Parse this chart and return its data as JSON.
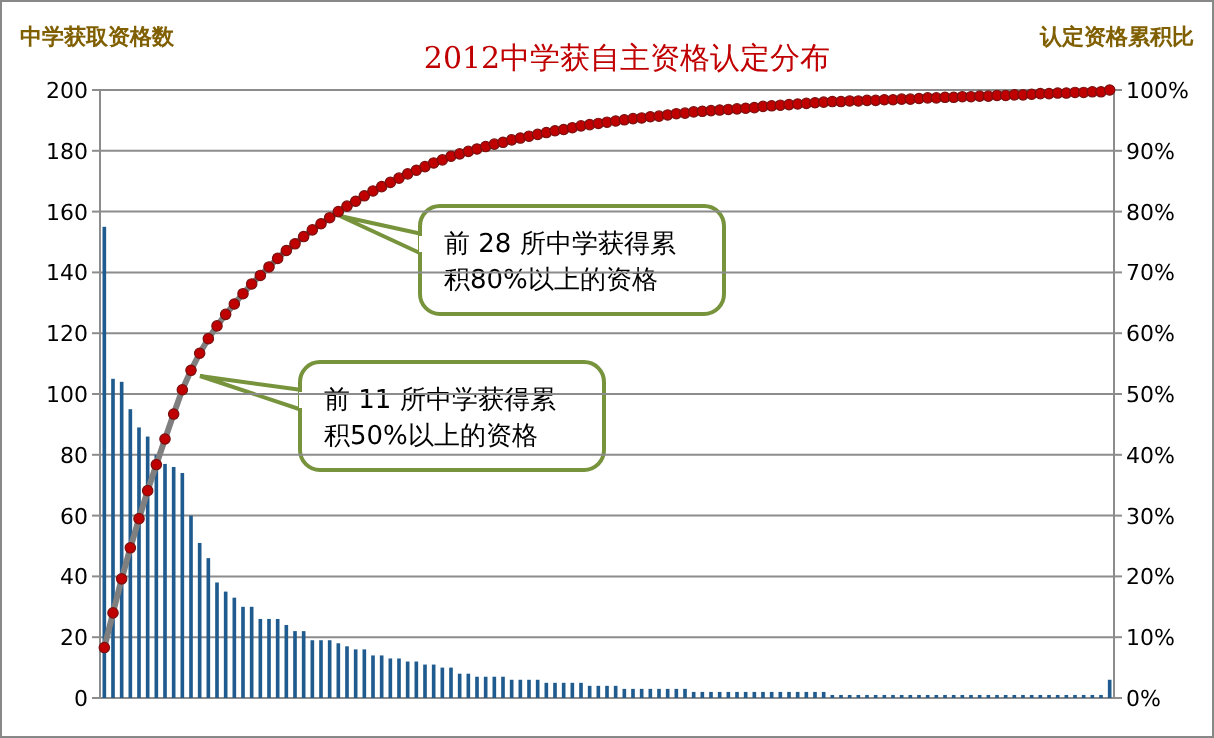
{
  "chart_data": {
    "type": "bar",
    "title": "2012中学获自主资格认定分布",
    "ylabel": "中学获取资格数",
    "y2label": "认定资格累积比",
    "categories": [
      null,
      null,
      null,
      null,
      null,
      null,
      null,
      null,
      null,
      null,
      null,
      null,
      null,
      null,
      null,
      null,
      null,
      null,
      null,
      null,
      null,
      null,
      null,
      null,
      null,
      null,
      null,
      null,
      null,
      null,
      null,
      null,
      null,
      null,
      null,
      null,
      null,
      null,
      null,
      null,
      null,
      null,
      null,
      null,
      null,
      null,
      null,
      null,
      null,
      null,
      null,
      null,
      null,
      null,
      null,
      null,
      null,
      null,
      null,
      null,
      null,
      null,
      null,
      null,
      null,
      null,
      null,
      null,
      null,
      null,
      null,
      null,
      null,
      null,
      null,
      null,
      null,
      null,
      null,
      null,
      null,
      null,
      null,
      null,
      null,
      null,
      null,
      null,
      null,
      null,
      null,
      null,
      null,
      null,
      null,
      null,
      null,
      null,
      null,
      null,
      null,
      null,
      null,
      null,
      null,
      null,
      null,
      null,
      null,
      null,
      null,
      null,
      null,
      null,
      null,
      null,
      null
    ],
    "series": [
      {
        "color": "#1f5b8e",
        "values": [
          155,
          105,
          104,
          95,
          89,
          86,
          80,
          77,
          76,
          74,
          60,
          51,
          46,
          38,
          35,
          33,
          30,
          30,
          26,
          26,
          26,
          24,
          22,
          22,
          19,
          19,
          19,
          18,
          17,
          16,
          16,
          14,
          14,
          13,
          13,
          12,
          12,
          11,
          11,
          10,
          10,
          8,
          8,
          7,
          7,
          7,
          7,
          6,
          6,
          6,
          6,
          5,
          5,
          5,
          5,
          5,
          4,
          4,
          4,
          4,
          3,
          3,
          3,
          3,
          3,
          3,
          3,
          3,
          2,
          2,
          2,
          2,
          2,
          2,
          2,
          2,
          2,
          2,
          2,
          2,
          2,
          2,
          2,
          2,
          1,
          1,
          1,
          1,
          1,
          1,
          1,
          1,
          1,
          1,
          1,
          1,
          1,
          1,
          1,
          1,
          1,
          1,
          1,
          1,
          1,
          1,
          1,
          1,
          1,
          1,
          1,
          1,
          1,
          1,
          1,
          1,
          6
        ]
      },
      {
        "type": "line",
        "axis": "y2",
        "color": "#c00000",
        "marker": "circle",
        "values": [
          8.3,
          14.0,
          19.6,
          24.7,
          29.5,
          34.1,
          38.4,
          42.6,
          46.7,
          50.7,
          53.9,
          56.7,
          59.1,
          61.2,
          63.1,
          64.8,
          66.5,
          68.1,
          69.5,
          70.9,
          72.3,
          73.6,
          74.7,
          75.9,
          77.0,
          78.0,
          79.0,
          80.0,
          80.9,
          81.7,
          82.6,
          83.4,
          84.1,
          84.8,
          85.5,
          86.2,
          86.8,
          87.4,
          88.0,
          88.5,
          89.1,
          89.5,
          89.9,
          90.3,
          90.7,
          91.1,
          91.4,
          91.8,
          92.1,
          92.4,
          92.7,
          93.0,
          93.3,
          93.5,
          93.8,
          94.1,
          94.3,
          94.5,
          94.7,
          94.9,
          95.1,
          95.3,
          95.4,
          95.6,
          95.7,
          95.9,
          96.1,
          96.2,
          96.4,
          96.5,
          96.6,
          96.7,
          96.8,
          96.9,
          97.0,
          97.1,
          97.3,
          97.4,
          97.5,
          97.6,
          97.7,
          97.8,
          97.9,
          98.0,
          98.1,
          98.1,
          98.2,
          98.2,
          98.3,
          98.3,
          98.4,
          98.4,
          98.5,
          98.5,
          98.6,
          98.7,
          98.7,
          98.8,
          98.8,
          98.9,
          98.9,
          99.0,
          99.0,
          99.1,
          99.1,
          99.2,
          99.2,
          99.3,
          99.4,
          99.4,
          99.5,
          99.5,
          99.6,
          99.6,
          99.7,
          99.7,
          100.0
        ]
      }
    ],
    "ylim": [
      0,
      200
    ],
    "yticks": [
      0,
      20,
      40,
      60,
      80,
      100,
      120,
      140,
      160,
      180,
      200
    ],
    "y2lim": [
      0,
      100
    ],
    "y2ticks": [
      {
        "value": 0,
        "label": "0%"
      },
      {
        "value": 10,
        "label": "10%"
      },
      {
        "value": 20,
        "label": "20%"
      },
      {
        "value": 30,
        "label": "30%"
      },
      {
        "value": 40,
        "label": "40%"
      },
      {
        "value": 50,
        "label": "50%"
      },
      {
        "value": 60,
        "label": "60%"
      },
      {
        "value": 70,
        "label": "70%"
      },
      {
        "value": 80,
        "label": "80%"
      },
      {
        "value": 90,
        "label": "90%"
      },
      {
        "value": 100,
        "label": "100%"
      }
    ],
    "grid": "y",
    "annotations": [
      "前 28 所中学获得累积80%以上的资格",
      "前 11 所中学获得累积50%以上的资格"
    ]
  }
}
